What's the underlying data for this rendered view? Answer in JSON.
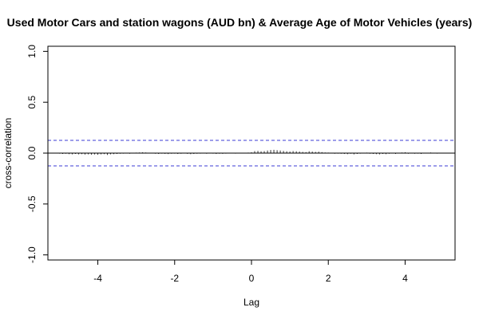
{
  "chart_data": {
    "type": "bar",
    "title": "Used Motor Cars and station wagons (AUD bn) & Average Age of Motor Vehicles (years)",
    "xlabel": "Lag",
    "ylabel": "cross-correlation",
    "xlim": [
      -5.3,
      5.3
    ],
    "ylim": [
      -1.05,
      1.05
    ],
    "x_ticks": [
      -4,
      -2,
      0,
      2,
      4
    ],
    "x_tick_labels": [
      "-4",
      "-2",
      "0",
      "2",
      "4"
    ],
    "y_ticks": [
      -1.0,
      -0.5,
      0.0,
      0.5,
      1.0
    ],
    "y_tick_labels": [
      "-1.0",
      "-0.5",
      "0.0",
      "0.5",
      "1.0"
    ],
    "confidence_bound": 0.125,
    "grid": false,
    "colors": {
      "bars": "#000000",
      "zero_line": "#000000",
      "confidence_lines": "#3b3bd6",
      "frame": "#000000"
    },
    "lags": [
      -5.0,
      -4.917,
      -4.833,
      -4.75,
      -4.667,
      -4.583,
      -4.5,
      -4.417,
      -4.333,
      -4.25,
      -4.167,
      -4.083,
      -4.0,
      -3.917,
      -3.833,
      -3.75,
      -3.667,
      -3.583,
      -3.5,
      -3.417,
      -3.333,
      -3.25,
      -3.167,
      -3.083,
      -3.0,
      -2.917,
      -2.833,
      -2.75,
      -2.667,
      -2.583,
      -2.5,
      -2.417,
      -2.333,
      -2.25,
      -2.167,
      -2.083,
      -2.0,
      -1.917,
      -1.833,
      -1.75,
      -1.667,
      -1.583,
      -1.5,
      -1.417,
      -1.333,
      -1.25,
      -1.167,
      -1.083,
      -1.0,
      -0.917,
      -0.833,
      -0.75,
      -0.667,
      -0.583,
      -0.5,
      -0.417,
      -0.333,
      -0.25,
      -0.167,
      -0.083,
      0.0,
      0.083,
      0.167,
      0.25,
      0.333,
      0.417,
      0.5,
      0.583,
      0.667,
      0.75,
      0.833,
      0.917,
      1.0,
      1.083,
      1.167,
      1.25,
      1.333,
      1.417,
      1.5,
      1.583,
      1.667,
      1.75,
      1.833,
      1.917,
      2.0,
      2.083,
      2.167,
      2.25,
      2.333,
      2.417,
      2.5,
      2.583,
      2.667,
      2.75,
      2.833,
      2.917,
      3.0,
      3.083,
      3.167,
      3.25,
      3.333,
      3.417,
      3.5,
      3.583,
      3.667,
      3.75,
      3.833,
      3.917,
      4.0,
      4.083,
      4.167,
      4.25,
      4.333,
      4.417,
      4.5,
      4.583,
      4.667,
      4.75,
      4.833,
      4.917,
      5.0
    ],
    "values": [
      -0.005,
      -0.008,
      -0.006,
      -0.01,
      -0.012,
      -0.008,
      -0.012,
      -0.01,
      -0.014,
      -0.012,
      -0.015,
      -0.013,
      -0.016,
      -0.012,
      -0.01,
      -0.018,
      -0.012,
      -0.01,
      -0.008,
      -0.006,
      -0.005,
      -0.004,
      -0.006,
      -0.004,
      0.005,
      0.006,
      0.008,
      0.006,
      0.004,
      -0.004,
      -0.006,
      -0.008,
      -0.005,
      -0.007,
      -0.009,
      -0.006,
      -0.005,
      -0.008,
      -0.006,
      -0.004,
      -0.007,
      -0.01,
      -0.008,
      -0.006,
      -0.005,
      -0.004,
      -0.006,
      -0.004,
      -0.005,
      -0.008,
      -0.006,
      -0.007,
      -0.005,
      -0.004,
      -0.003,
      -0.005,
      -0.004,
      0.003,
      0.004,
      0.005,
      0.008,
      0.02,
      0.022,
      0.018,
      0.02,
      0.025,
      0.03,
      0.032,
      0.028,
      0.025,
      0.022,
      0.018,
      0.016,
      0.02,
      0.018,
      0.015,
      0.012,
      0.01,
      0.018,
      0.015,
      0.012,
      0.014,
      0.01,
      0.006,
      0.005,
      -0.004,
      -0.006,
      -0.005,
      -0.006,
      -0.008,
      -0.01,
      -0.006,
      -0.012,
      -0.008,
      -0.005,
      0.004,
      0.005,
      -0.006,
      -0.008,
      -0.01,
      -0.012,
      -0.008,
      -0.01,
      -0.006,
      -0.004,
      -0.008,
      -0.004,
      0.006,
      0.008,
      -0.006,
      -0.004,
      -0.006,
      -0.005,
      -0.008,
      -0.004,
      0.004,
      0.006,
      -0.004,
      -0.005,
      -0.004,
      0.004
    ]
  }
}
